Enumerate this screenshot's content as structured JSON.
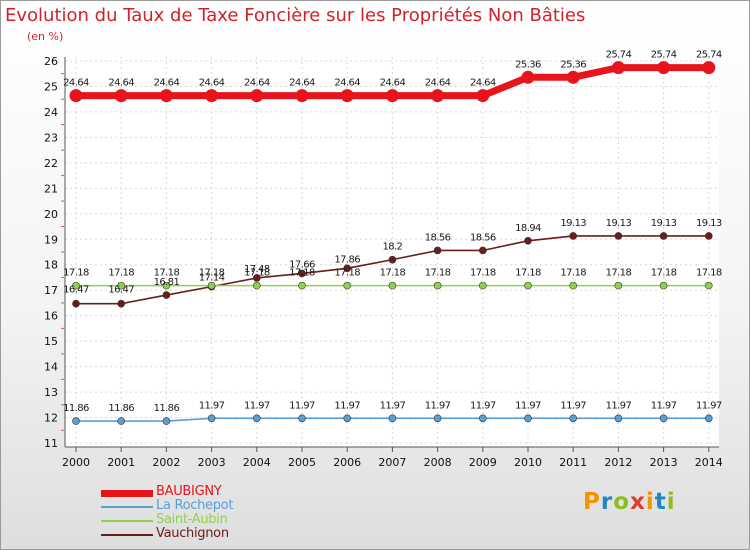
{
  "title": "Evolution du Taux de Taxe Foncière sur les Propriétés Non Bâties",
  "subtitle": "(en %)",
  "logo": {
    "text": "Proxiti",
    "colors": [
      "#f29400",
      "#1f87c8",
      "#8dbd1f",
      "#e13b2e",
      "#f29400",
      "#1f87c8",
      "#8dbd1f"
    ]
  },
  "chart_data": {
    "type": "line",
    "title": "Evolution du Taux de Taxe Foncière sur les Propriétés Non Bâties",
    "ylabel": "(en %)",
    "x": [
      "2000",
      "2001",
      "2002",
      "2003",
      "2004",
      "2005",
      "2006",
      "2007",
      "2008",
      "2009",
      "2010",
      "2011",
      "2012",
      "2013",
      "2014"
    ],
    "ylim": [
      11,
      26
    ],
    "yticks": [
      "11",
      "12",
      "13",
      "14",
      "15",
      "16",
      "17",
      "18",
      "19",
      "20",
      "21",
      "22",
      "23",
      "24",
      "25",
      "26"
    ],
    "series": [
      {
        "name": "BAUBIGNY",
        "color": "#e8141c",
        "width": 7,
        "marker": 6.5,
        "values": [
          24.64,
          24.64,
          24.64,
          24.64,
          24.64,
          24.64,
          24.64,
          24.64,
          24.64,
          24.64,
          25.36,
          25.36,
          25.74,
          25.74,
          25.74
        ],
        "labels": [
          "24.64",
          "24.64",
          "24.64",
          "24.64",
          "24.64",
          "24.64",
          "24.64",
          "24.64",
          "24.64",
          "24.64",
          "25.36",
          "25.36",
          "25.74",
          "25.74",
          "25.74"
        ]
      },
      {
        "name": "La Rochepot",
        "color": "#5a9ed6",
        "width": 1.6,
        "marker": 3.5,
        "values": [
          11.86,
          11.86,
          11.86,
          11.97,
          11.97,
          11.97,
          11.97,
          11.97,
          11.97,
          11.97,
          11.97,
          11.97,
          11.97,
          11.97,
          11.97
        ],
        "labels": [
          "11.86",
          "11.86",
          "11.86",
          "11.97",
          "11.97",
          "11.97",
          "11.97",
          "11.97",
          "11.97",
          "11.97",
          "11.97",
          "11.97",
          "11.97",
          "11.97",
          "11.97"
        ]
      },
      {
        "name": "Saint-Aubin",
        "color": "#8fd14f",
        "width": 1.6,
        "marker": 3.5,
        "values": [
          17.18,
          17.18,
          17.18,
          17.18,
          17.18,
          17.18,
          17.18,
          17.18,
          17.18,
          17.18,
          17.18,
          17.18,
          17.18,
          17.18,
          17.18
        ],
        "labels": [
          "17.18",
          "17.18",
          "17.18",
          "17.18",
          "17.18",
          "17.18",
          "17.18",
          "17.18",
          "17.18",
          "17.18",
          "17.18",
          "17.18",
          "17.18",
          "17.18",
          "17.18"
        ]
      },
      {
        "name": "Vauchignon",
        "color": "#6b1c1c",
        "width": 1.6,
        "marker": 3.5,
        "values": [
          16.47,
          16.47,
          16.81,
          17.14,
          17.48,
          17.66,
          17.86,
          18.2,
          18.56,
          18.56,
          18.94,
          19.13,
          19.13,
          19.13,
          19.13
        ],
        "labels": [
          "16.47",
          "16.47",
          "16.81",
          "17.14",
          "17.48",
          "17.66",
          "17.86",
          "18.2",
          "18.56",
          "18.56",
          "18.94",
          "19.13",
          "19.13",
          "19.13",
          "19.13"
        ]
      }
    ]
  }
}
